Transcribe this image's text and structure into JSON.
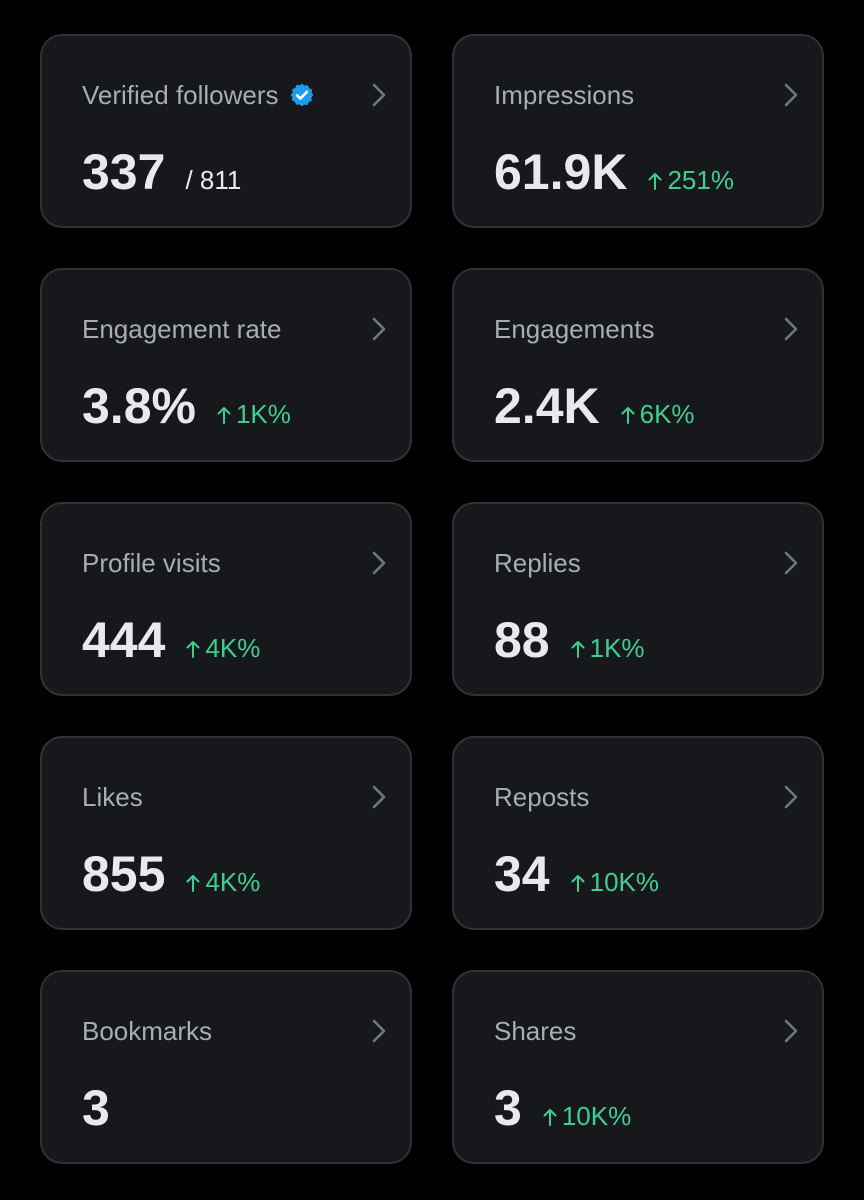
{
  "colors": {
    "background": "#000000",
    "card_bg": "#16181c",
    "card_border": "#2f3336",
    "label": "#a9adb2",
    "value": "#e7e9ea",
    "positive_change": "#3ecf8e",
    "verified": "#1d9bf0"
  },
  "icons": {
    "chevron": "chevron-right-icon",
    "verified": "verified-badge-icon",
    "trend": "arrow-up-icon"
  },
  "cards": [
    {
      "label": "Verified followers",
      "value": "337",
      "total": "/ 811"
    },
    {
      "label": "Impressions",
      "value": "61.9K",
      "change": "251%"
    },
    {
      "label": "Engagement rate",
      "value": "3.8%",
      "change": "1K%"
    },
    {
      "label": "Engagements",
      "value": "2.4K",
      "change": "6K%"
    },
    {
      "label": "Profile visits",
      "value": "444",
      "change": "4K%"
    },
    {
      "label": "Replies",
      "value": "88",
      "change": "1K%"
    },
    {
      "label": "Likes",
      "value": "855",
      "change": "4K%"
    },
    {
      "label": "Reposts",
      "value": "34",
      "change": "10K%"
    },
    {
      "label": "Bookmarks",
      "value": "3"
    },
    {
      "label": "Shares",
      "value": "3",
      "change": "10K%"
    }
  ]
}
